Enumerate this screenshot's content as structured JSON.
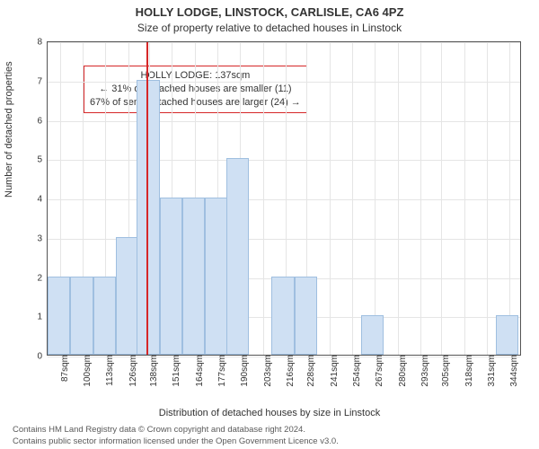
{
  "chart": {
    "type": "histogram",
    "title_main": "HOLLY LODGE, LINSTOCK, CARLISLE, CA6 4PZ",
    "title_sub": "Size of property relative to detached houses in Linstock",
    "ylabel": "Number of detached properties",
    "xlabel": "Distribution of detached houses by size in Linstock",
    "title_fontsize": 13,
    "subtitle_fontsize": 12,
    "label_fontsize": 11,
    "tick_fontsize": 10,
    "annotation_fontsize": 11,
    "attribution_fontsize": 9.5,
    "plot_border_color": "#555555",
    "background_color": "#ffffff",
    "grid_color": "#e5e5e5",
    "text_color": "#333333",
    "attribution_color": "#5a5a5a",
    "bar_fill": "#cfe0f3",
    "bar_border": "#9fbfe0",
    "marker_color": "#d62728",
    "marker_sqm": 137,
    "annotation": {
      "line1": "HOLLY LODGE: 137sqm",
      "line2": "← 31% of detached houses are smaller (11)",
      "line3": "67% of semi-detached houses are larger (24) →",
      "border_color": "#d62728",
      "bg_color": "#ffffff"
    },
    "x_min": 80,
    "x_max": 351,
    "xticks": [
      87,
      100,
      113,
      126,
      138,
      151,
      164,
      177,
      190,
      203,
      216,
      228,
      241,
      254,
      267,
      280,
      293,
      305,
      318,
      331,
      344
    ],
    "xtick_suffix": "sqm",
    "ylim": [
      0,
      8
    ],
    "yticks": [
      0,
      1,
      2,
      3,
      4,
      5,
      6,
      7,
      8
    ],
    "bar_width_sqm": 13,
    "bars": [
      {
        "start": 80,
        "value": 2
      },
      {
        "start": 93,
        "value": 2
      },
      {
        "start": 106,
        "value": 2
      },
      {
        "start": 119,
        "value": 3
      },
      {
        "start": 131,
        "value": 7
      },
      {
        "start": 144,
        "value": 4
      },
      {
        "start": 157,
        "value": 4
      },
      {
        "start": 170,
        "value": 4
      },
      {
        "start": 182,
        "value": 5
      },
      {
        "start": 195,
        "value": 0
      },
      {
        "start": 208,
        "value": 2
      },
      {
        "start": 221,
        "value": 2
      },
      {
        "start": 233,
        "value": 0
      },
      {
        "start": 246,
        "value": 0
      },
      {
        "start": 259,
        "value": 1
      },
      {
        "start": 272,
        "value": 0
      },
      {
        "start": 284,
        "value": 0
      },
      {
        "start": 297,
        "value": 0
      },
      {
        "start": 310,
        "value": 0
      },
      {
        "start": 323,
        "value": 0
      },
      {
        "start": 336,
        "value": 1
      }
    ],
    "attribution1": "Contains HM Land Registry data © Crown copyright and database right 2024.",
    "attribution2": "Contains public sector information licensed under the Open Government Licence v3.0."
  }
}
